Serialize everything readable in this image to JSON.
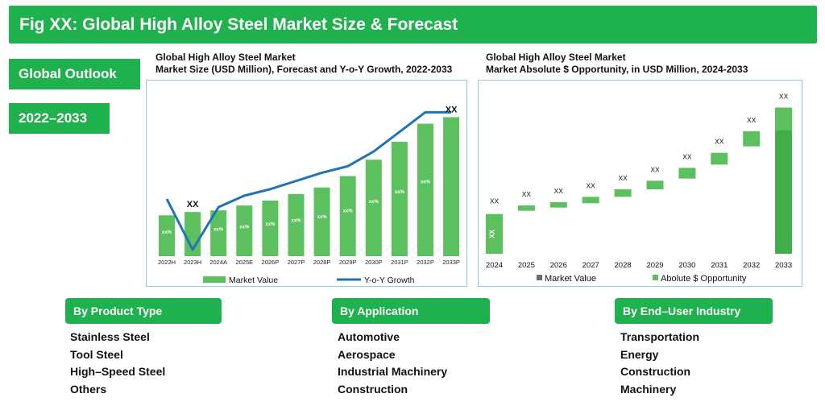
{
  "figure_title": "Fig XX: Global High Alloy Steel Market Size & Forecast",
  "side_labels": {
    "outlook": "Global Outlook",
    "years": "2022–2033"
  },
  "chart_data": [
    {
      "type": "bar",
      "title": "Global High Alloy Steel Market",
      "subtitle": "Market Size (USD Million), Forecast and Y-o-Y Growth, 2022-2033",
      "categories": [
        "2022H",
        "2023H",
        "2024A",
        "2025E",
        "2026P",
        "2027P",
        "2028P",
        "2029P",
        "2030P",
        "2031P",
        "2032P",
        "2033P"
      ],
      "series": [
        {
          "name": "Market Value",
          "kind": "bar",
          "color": "#5cc05f",
          "values": [
            25,
            27,
            28,
            31,
            34,
            38,
            42,
            49,
            59,
            70,
            81,
            85
          ]
        },
        {
          "name": "Y-o-Y Growth",
          "kind": "line",
          "color": "#1f74b8",
          "values": [
            35,
            4,
            30,
            37,
            41,
            46,
            51,
            55,
            64,
            76,
            88,
            88
          ]
        }
      ],
      "bar_labels": [
        "xx%",
        "XX",
        "xx%",
        "xx%",
        "xx%",
        "xx%",
        "xx%",
        "xx%",
        "xx%",
        "xx%",
        "xx%",
        "XX"
      ],
      "ylim": [
        0,
        100
      ],
      "legend_position": "bottom",
      "grid": false
    },
    {
      "type": "bar",
      "title": "Global High Alloy Steel Market",
      "subtitle": "Market Absolute $ Opportunity, in USD Million, 2024-2033",
      "categories": [
        "2024",
        "2025",
        "2026",
        "2027",
        "2028",
        "2029",
        "2030",
        "2031",
        "2032",
        "2033"
      ],
      "series": [
        {
          "name": "Market Value",
          "color": "#6a6a6a",
          "values": [
            37,
            0,
            0,
            0,
            0,
            0,
            0,
            0,
            0,
            0
          ]
        },
        {
          "name": "Abolute $ Opportunity",
          "color": "#5cc05f",
          "ranges": [
            [
              0,
              37
            ],
            [
              40,
              45
            ],
            [
              43,
              48
            ],
            [
              47,
              53
            ],
            [
              53,
              60
            ],
            [
              60,
              68
            ],
            [
              70,
              80
            ],
            [
              83,
              94
            ],
            [
              100,
              114
            ],
            [
              115,
              136
            ]
          ]
        }
      ],
      "bar_labels": [
        "XX",
        "XX",
        "XX",
        "XX",
        "XX",
        "XX",
        "XX",
        "XX",
        "XX",
        "XX"
      ],
      "bar_label_colors": [
        "#ffffff",
        "#111111",
        "#111111",
        "#111111",
        "#111111",
        "#111111",
        "#111111",
        "#111111",
        "#111111",
        "#111111"
      ],
      "total_bar_color": "#3fae4a",
      "ylim": [
        0,
        150
      ],
      "legend_position": "bottom",
      "grid": false
    }
  ],
  "segments": [
    {
      "title": "By Product Type",
      "items": [
        "Stainless Steel",
        "Tool Steel",
        "High–Speed Steel",
        "Others"
      ]
    },
    {
      "title": "By Application",
      "items": [
        "Automotive",
        "Aerospace",
        "Industrial Machinery",
        "Construction"
      ]
    },
    {
      "title": "By End–User Industry",
      "items": [
        "Transportation",
        "Energy",
        "Construction",
        "Machinery"
      ]
    }
  ]
}
